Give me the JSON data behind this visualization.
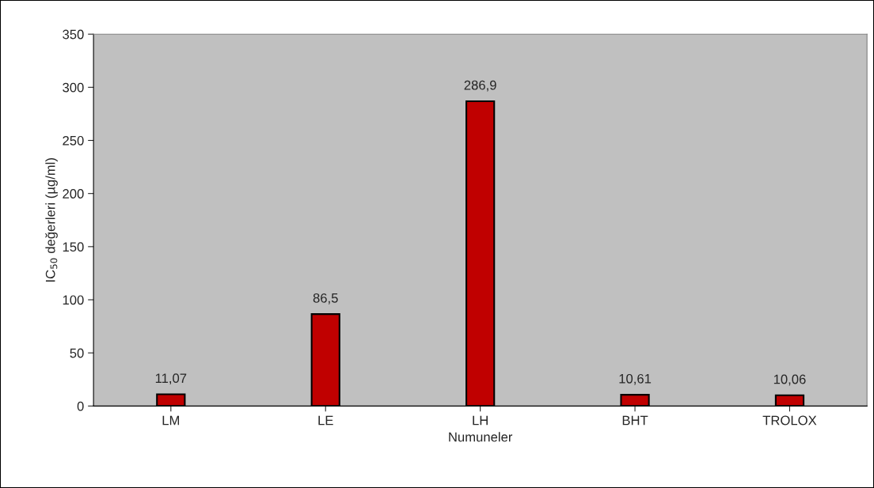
{
  "chart_data": {
    "type": "bar",
    "xlabel": "Numuneler",
    "ylabel": "IC$_{50}$ değerleri (µg/ml)",
    "categories": [
      "LM",
      "LE",
      "LH",
      "BHT",
      "TROLOX"
    ],
    "values": [
      11.07,
      86.5,
      286.9,
      10.61,
      10.06
    ],
    "value_labels": [
      "11,07",
      "86,5",
      "286,9",
      "10,61",
      "10,06"
    ],
    "color": "#c00000",
    "ylim": [
      0,
      350
    ],
    "yticks": [
      0,
      50,
      100,
      150,
      200,
      250,
      300,
      350
    ],
    "grid": false,
    "legend": false
  }
}
